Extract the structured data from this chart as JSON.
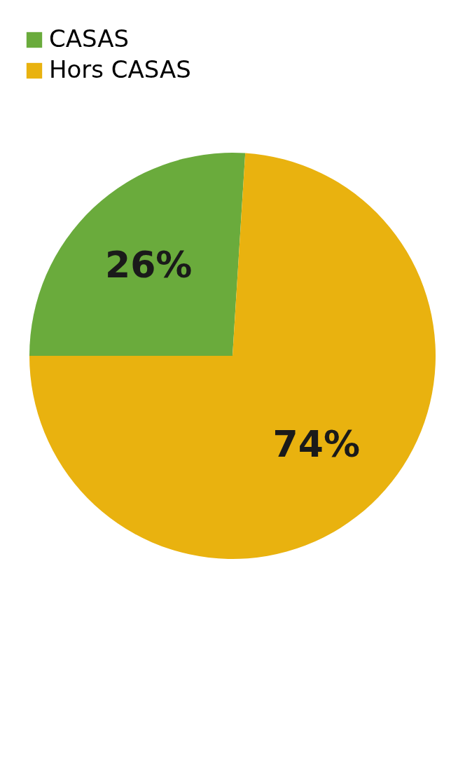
{
  "chart_data": {
    "type": "pie",
    "categories": [
      "CASAS",
      "Hors CASAS"
    ],
    "values": [
      26,
      74
    ],
    "value_labels": [
      "26%",
      "74%"
    ],
    "colors": [
      "#6aab3c",
      "#e9b20f"
    ],
    "legend": "top"
  }
}
